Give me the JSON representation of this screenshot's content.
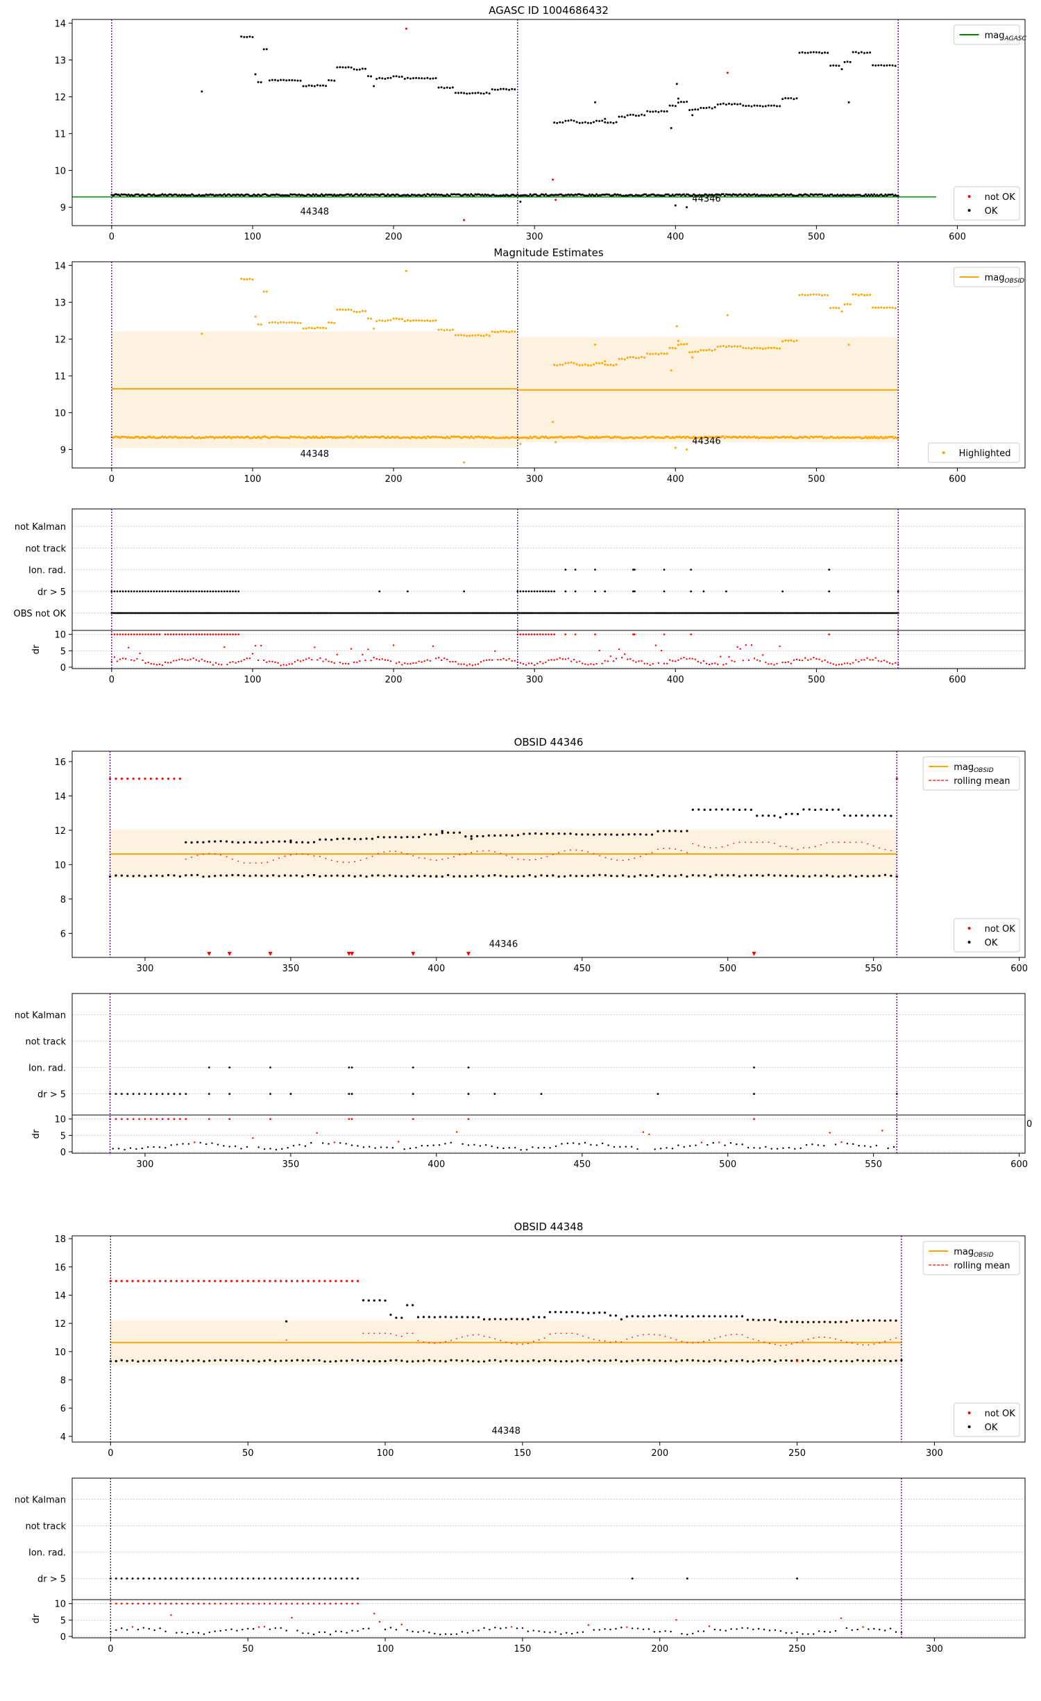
{
  "chart_data": [
    {
      "id": "agasc",
      "type": "scatter",
      "title": "AGASC ID 1004686432",
      "xlim": [
        -28,
        648
      ],
      "ylim": [
        8.5,
        14.1
      ],
      "xticks": [
        0,
        100,
        200,
        300,
        400,
        500,
        600
      ],
      "yticks": [
        9,
        10,
        11,
        12,
        13,
        14
      ],
      "hline": {
        "y": 9.28,
        "x": [
          -28,
          585
        ],
        "color": "#008000"
      },
      "vlines": [
        0,
        288,
        558
      ],
      "obsid_labels": [
        {
          "text": "44348",
          "x": 144,
          "y": 8.8
        },
        {
          "text": "44346",
          "x": 422,
          "y": 9.15
        }
      ],
      "legend_top": {
        "entries": [
          {
            "label": "mag",
            "sub": "AGASC",
            "color": "#008000"
          }
        ]
      },
      "legend_bottom": {
        "entries": [
          {
            "label": "not OK",
            "color": "#ff0000"
          },
          {
            "label": "OK",
            "color": "#000000"
          }
        ]
      },
      "series_seed": "agasc"
    },
    {
      "id": "mag_estimates",
      "type": "scatter",
      "title": "Magnitude Estimates",
      "xlim": [
        -28,
        648
      ],
      "ylim": [
        8.5,
        14.1
      ],
      "xticks": [
        0,
        100,
        200,
        300,
        400,
        500,
        600
      ],
      "yticks": [
        9,
        10,
        11,
        12,
        13,
        14
      ],
      "bands": [
        {
          "x": [
            0,
            288
          ],
          "y": [
            9.05,
            12.2
          ],
          "mean": 10.65
        },
        {
          "x": [
            288,
            558
          ],
          "y": [
            9.2,
            12.05
          ],
          "mean": 10.62
        }
      ],
      "vlines": [
        0,
        288,
        558
      ],
      "obsid_labels": [
        {
          "text": "44348",
          "x": 144,
          "y": 8.8
        },
        {
          "text": "44346",
          "x": 422,
          "y": 9.15
        }
      ],
      "legend_top": {
        "entries": [
          {
            "label": "mag",
            "sub": "OBSID",
            "color": "#ffa500"
          }
        ]
      },
      "legend_bottom": {
        "entries": [
          {
            "label": "Highlighted",
            "color": "#ffa500"
          }
        ]
      }
    },
    {
      "id": "flags_all",
      "type": "scatter",
      "xlim": [
        -28,
        648
      ],
      "categories": [
        "not Kalman",
        "not track",
        "Ion. rad.",
        "dr > 5",
        "OBS not OK"
      ],
      "dr_yticks": [
        0,
        5,
        10
      ],
      "dr_ylabel": "dr",
      "vlines": [
        0,
        288,
        558
      ],
      "xticks": [
        0,
        100,
        200,
        300,
        400,
        500,
        600
      ]
    },
    {
      "id": "obsid_44346",
      "type": "scatter",
      "title": "OBSID 44346",
      "xlim": [
        275,
        602
      ],
      "ylim": [
        4.6,
        16.6
      ],
      "xticks": [
        300,
        350,
        400,
        450,
        500,
        550,
        600
      ],
      "yticks": [
        6,
        8,
        10,
        12,
        14,
        16
      ],
      "band": {
        "x": [
          288,
          558
        ],
        "y": [
          9.2,
          12.05
        ],
        "mean": 10.62
      },
      "vlines": [
        288,
        558
      ],
      "obsid_labels": [
        {
          "text": "44346",
          "x": 423,
          "y": 5.2
        }
      ],
      "legend_top": {
        "entries": [
          {
            "label": "mag",
            "sub": "OBSID",
            "color": "#ffa500"
          },
          {
            "label": "rolling mean",
            "color": "#ff0000",
            "dashed": true
          }
        ]
      },
      "legend_bottom": {
        "entries": [
          {
            "label": "not OK",
            "color": "#ff0000"
          },
          {
            "label": "OK",
            "color": "#000000"
          }
        ]
      }
    },
    {
      "id": "flags_44346",
      "type": "scatter",
      "xlim": [
        275,
        602
      ],
      "categories": [
        "not Kalman",
        "not track",
        "Ion. rad.",
        "dr > 5"
      ],
      "dr_yticks": [
        0,
        5,
        10
      ],
      "dr_ylabel": "dr",
      "vlines": [
        288,
        558
      ],
      "xticks": [
        300,
        350,
        400,
        450,
        500,
        550,
        600
      ],
      "stray_tick": "0"
    },
    {
      "id": "obsid_44348",
      "type": "scatter",
      "title": "OBSID 44348",
      "xlim": [
        -14,
        333
      ],
      "ylim": [
        3.6,
        18.2
      ],
      "xticks": [
        0,
        50,
        100,
        150,
        200,
        250,
        300
      ],
      "yticks": [
        4,
        6,
        8,
        10,
        12,
        14,
        16,
        18
      ],
      "band": {
        "x": [
          0,
          288
        ],
        "y": [
          9.05,
          12.2
        ],
        "mean": 10.65
      },
      "vlines": [
        0,
        288
      ],
      "obsid_labels": [
        {
          "text": "44348",
          "x": 144,
          "y": 4.2
        }
      ],
      "legend_top": {
        "entries": [
          {
            "label": "mag",
            "sub": "OBSID",
            "color": "#ffa500"
          },
          {
            "label": "rolling mean",
            "color": "#ff0000",
            "dashed": true
          }
        ]
      },
      "legend_bottom": {
        "entries": [
          {
            "label": "not OK",
            "color": "#ff0000"
          },
          {
            "label": "OK",
            "color": "#000000"
          }
        ]
      }
    },
    {
      "id": "flags_44348",
      "type": "scatter",
      "xlim": [
        -14,
        333
      ],
      "categories": [
        "not Kalman",
        "not track",
        "Ion. rad.",
        "dr > 5"
      ],
      "dr_yticks": [
        0,
        5,
        10
      ],
      "dr_ylabel": "dr",
      "vlines": [
        0,
        288
      ],
      "xticks": [
        0,
        50,
        100,
        150,
        200,
        250,
        300
      ]
    }
  ]
}
